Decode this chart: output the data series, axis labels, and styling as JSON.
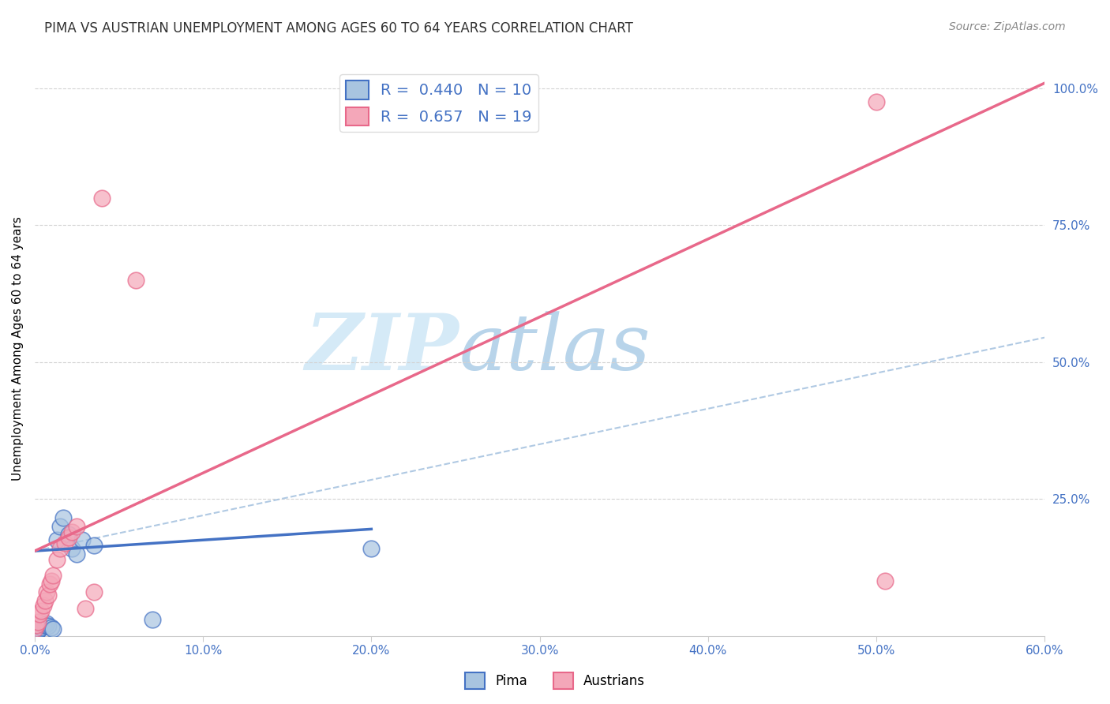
{
  "title": "PIMA VS AUSTRIAN UNEMPLOYMENT AMONG AGES 60 TO 64 YEARS CORRELATION CHART",
  "source": "Source: ZipAtlas.com",
  "xlabel": "",
  "ylabel": "Unemployment Among Ages 60 to 64 years",
  "xlim": [
    0.0,
    0.6
  ],
  "ylim": [
    0.0,
    1.05
  ],
  "xtick_labels": [
    "0.0%",
    "10.0%",
    "20.0%",
    "30.0%",
    "40.0%",
    "50.0%",
    "60.0%"
  ],
  "xtick_values": [
    0.0,
    0.1,
    0.2,
    0.3,
    0.4,
    0.5,
    0.6
  ],
  "ytick_labels": [
    "25.0%",
    "50.0%",
    "75.0%",
    "100.0%"
  ],
  "ytick_values": [
    0.25,
    0.5,
    0.75,
    1.0
  ],
  "pima_x": [
    0.0,
    0.002,
    0.003,
    0.004,
    0.005,
    0.006,
    0.007,
    0.008,
    0.01,
    0.011,
    0.013,
    0.015,
    0.017,
    0.02,
    0.022,
    0.025,
    0.028,
    0.035,
    0.07,
    0.2
  ],
  "pima_y": [
    0.01,
    0.01,
    0.013,
    0.015,
    0.02,
    0.02,
    0.022,
    0.018,
    0.015,
    0.013,
    0.175,
    0.2,
    0.215,
    0.185,
    0.16,
    0.15,
    0.175,
    0.165,
    0.03,
    0.16
  ],
  "austrians_x": [
    0.0,
    0.001,
    0.002,
    0.003,
    0.004,
    0.005,
    0.006,
    0.007,
    0.008,
    0.009,
    0.01,
    0.011,
    0.013,
    0.015,
    0.018,
    0.02,
    0.022,
    0.025,
    0.03,
    0.035,
    0.04,
    0.06,
    0.5,
    0.505
  ],
  "austrians_y": [
    0.013,
    0.02,
    0.025,
    0.04,
    0.045,
    0.055,
    0.065,
    0.08,
    0.075,
    0.095,
    0.1,
    0.11,
    0.14,
    0.16,
    0.17,
    0.18,
    0.19,
    0.2,
    0.05,
    0.08,
    0.8,
    0.65,
    0.975,
    0.1
  ],
  "pima_R": 0.44,
  "pima_N": 10,
  "austrians_R": 0.657,
  "austrians_N": 19,
  "pima_color": "#a8c4e0",
  "pima_line_color": "#4472c4",
  "austrians_color": "#f4a7b9",
  "austrians_line_color": "#e8688a",
  "dashed_line_color": "#a8c4e0",
  "grid_color": "#d3d3d3",
  "title_color": "#333333",
  "axis_label_color": "#4472c4",
  "legend_R_color": "#4472c4",
  "watermark_color": "#d0e8f5",
  "watermark_ZIP": "ZIP",
  "watermark_atlas": "atlas",
  "figsize": [
    14.06,
    8.92
  ],
  "dpi": 100,
  "pima_line_x": [
    0.0,
    0.2
  ],
  "pima_line_y": [
    0.155,
    0.195
  ],
  "austrians_line_x": [
    0.0,
    0.6
  ],
  "austrians_line_y": [
    0.155,
    1.01
  ],
  "dashed_line_x": [
    0.0,
    0.6
  ],
  "dashed_line_y": [
    0.155,
    0.545
  ]
}
